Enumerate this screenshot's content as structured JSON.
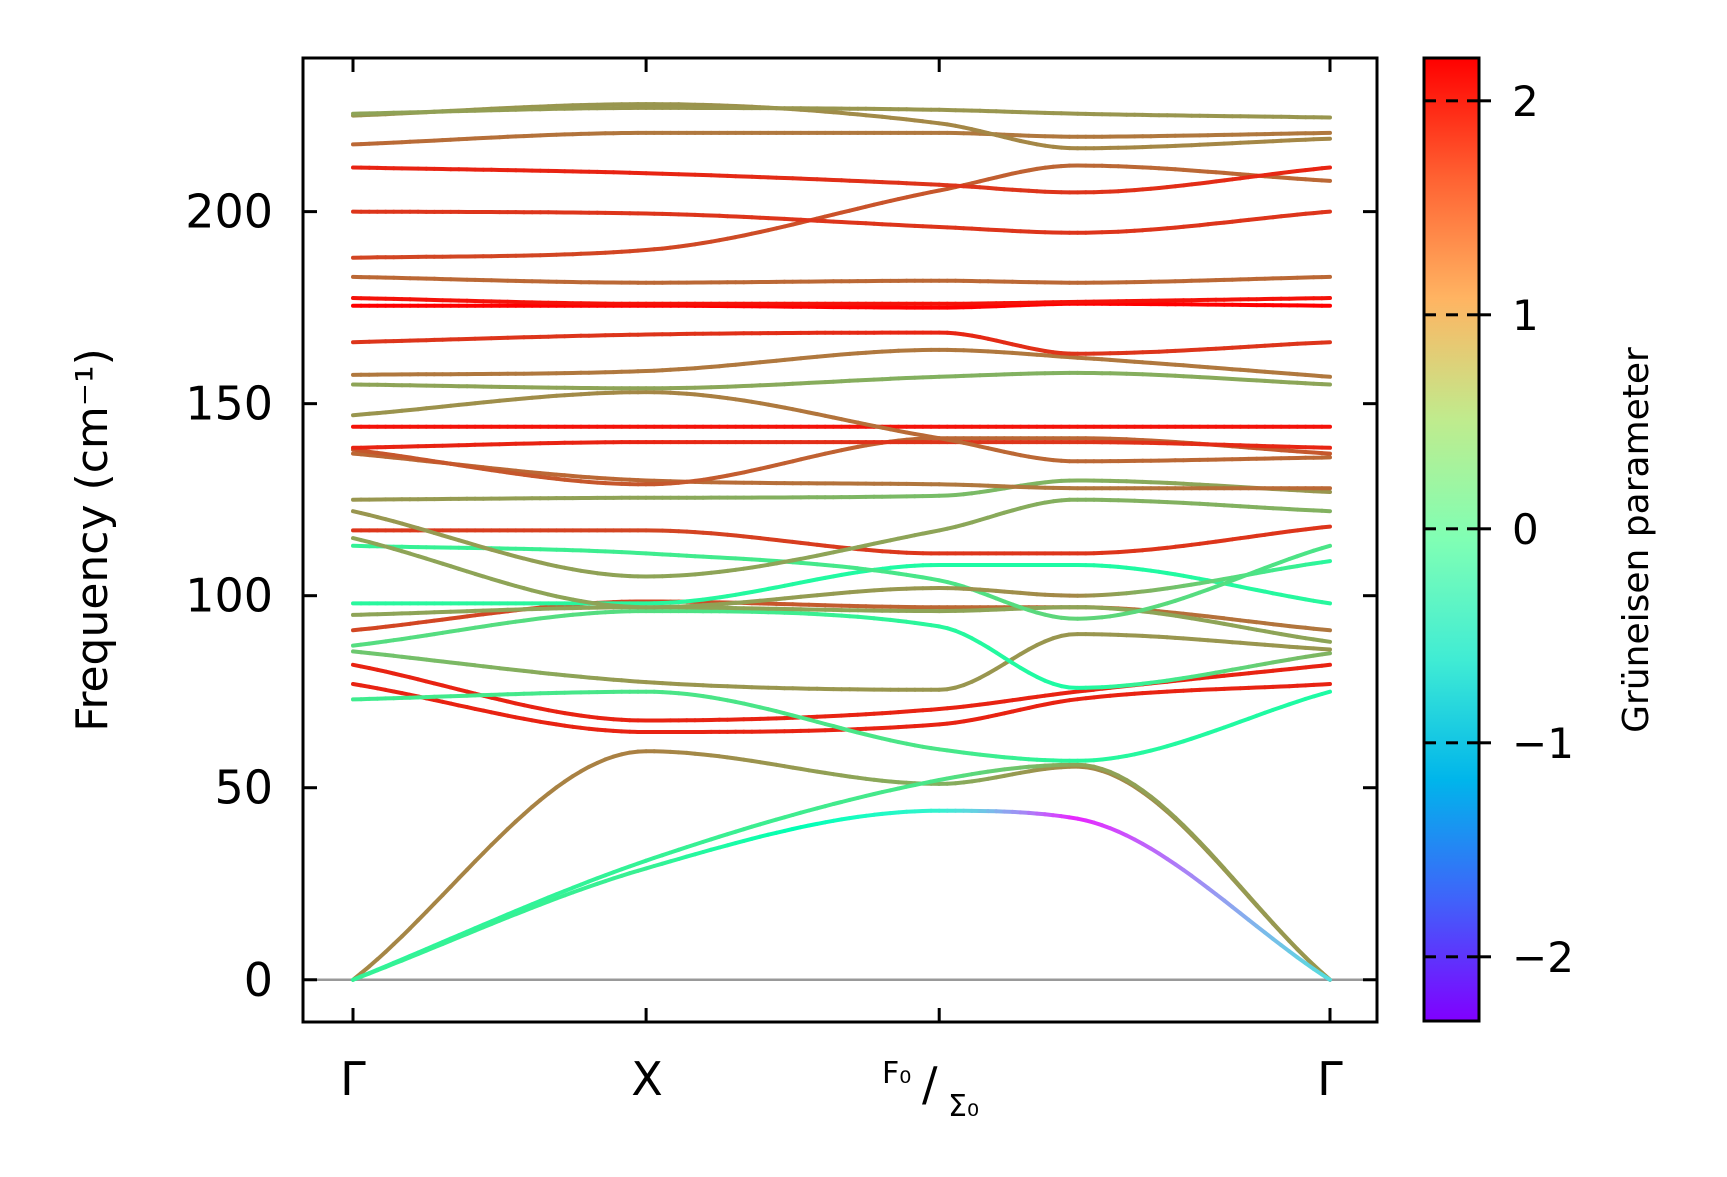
{
  "chart_data": {
    "type": "line",
    "title": "",
    "xlabel": "",
    "ylabel": "Frequency (cm⁻¹)",
    "ylim": [
      -11,
      240
    ],
    "xlim": [
      -0.12,
      2.62
    ],
    "ytick_labels": [
      "0",
      "50",
      "100",
      "150",
      "200"
    ],
    "yticks": [
      0,
      50,
      100,
      150,
      200
    ],
    "xticks": [
      {
        "label": "Γ",
        "pos": 0
      },
      {
        "label": "X",
        "pos": 0.75
      },
      {
        "label": "F₀/Σ₀",
        "pos": 1.5
      },
      {
        "label": "Γ",
        "pos": 2.5
      }
    ],
    "x_label_gamma": "Γ",
    "x_label_x": "X",
    "x_label_f0": "F₀",
    "x_label_s0": "Σ₀",
    "colorbar": {
      "label": "Grüneisen parameter",
      "min": -2.3,
      "max": 2.2,
      "ticks": [
        2,
        1,
        0,
        -1,
        -2
      ],
      "tick_labels": [
        "2",
        "1",
        "0",
        "−1",
        "−2"
      ],
      "colormap": "rainbow"
    },
    "zero_line": 0,
    "series": [
      {
        "x": [
          0,
          0.75,
          1.5,
          1.85,
          2.5
        ],
        "y": [
          0,
          59.5,
          51,
          55.5,
          0
        ],
        "g": [
          1.4,
          1.45,
          1.1,
          1.4,
          1.3
        ]
      },
      {
        "x": [
          0,
          0.75,
          1.5,
          1.85,
          2.5
        ],
        "y": [
          0,
          31,
          52,
          56,
          0
        ],
        "g": [
          0.3,
          0.4,
          0.6,
          1.2,
          1.3
        ]
      },
      {
        "x": [
          0,
          0.75,
          1.5,
          1.85,
          2.5
        ],
        "y": [
          0,
          29,
          44,
          42,
          0
        ],
        "g": [
          0.4,
          0.45,
          -0.5,
          -2.1,
          -0.8
        ]
      },
      {
        "x": [
          0,
          0.75,
          1.5,
          1.85,
          2.5
        ],
        "y": [
          82,
          67.5,
          70.5,
          75,
          82
        ],
        "g": [
          2.0,
          2.0,
          2.0,
          2.0,
          2.0
        ]
      },
      {
        "x": [
          0,
          0.75,
          1.5,
          1.85,
          2.5
        ],
        "y": [
          77,
          64.5,
          66.5,
          73,
          77
        ],
        "g": [
          2.0,
          2.0,
          2.0,
          2.0,
          2.0
        ]
      },
      {
        "x": [
          0,
          0.75,
          1.5,
          1.85,
          2.5
        ],
        "y": [
          73,
          75,
          60,
          57,
          75
        ],
        "g": [
          0.5,
          0.6,
          0.6,
          0.3,
          0.2
        ]
      },
      {
        "x": [
          0,
          0.75,
          1.5,
          1.85,
          2.5
        ],
        "y": [
          85.5,
          77.5,
          75.5,
          90,
          86
        ],
        "g": [
          0.9,
          1.3,
          1.3,
          1.3,
          1.3
        ]
      },
      {
        "x": [
          0,
          0.75,
          1.5,
          1.85,
          2.5
        ],
        "y": [
          87,
          96,
          92,
          76,
          85
        ],
        "g": [
          0.7,
          0.7,
          0.3,
          0.2,
          1.1
        ]
      },
      {
        "x": [
          0,
          0.75,
          1.5,
          1.85,
          2.5
        ],
        "y": [
          91,
          98.5,
          97,
          97,
          91
        ],
        "g": [
          1.8,
          1.8,
          1.6,
          1.6,
          1.5
        ]
      },
      {
        "x": [
          0,
          0.75,
          1.5,
          1.85,
          2.5
        ],
        "y": [
          95,
          97,
          96,
          97,
          88
        ],
        "g": [
          1.2,
          1.2,
          1.2,
          1.2,
          1.2
        ]
      },
      {
        "x": [
          0,
          0.75,
          1.5,
          1.85,
          2.5
        ],
        "y": [
          98,
          98,
          108,
          108,
          98
        ],
        "g": [
          0.3,
          0.3,
          0.2,
          0.2,
          0.3
        ]
      },
      {
        "x": [
          0,
          0.75,
          1.5,
          1.85,
          2.5
        ],
        "y": [
          113,
          111,
          104,
          94,
          113
        ],
        "g": [
          0.4,
          0.5,
          0.6,
          0.8,
          0.6
        ]
      },
      {
        "x": [
          0,
          0.75,
          1.5,
          1.85,
          2.5
        ],
        "y": [
          115,
          97,
          102,
          100,
          109
        ],
        "g": [
          1.2,
          1.2,
          1.3,
          1.4,
          0.3
        ]
      },
      {
        "x": [
          0,
          0.75,
          1.5,
          1.85,
          2.5
        ],
        "y": [
          117,
          117,
          111,
          111,
          118
        ],
        "g": [
          1.9,
          1.8,
          1.9,
          1.9,
          1.9
        ]
      },
      {
        "x": [
          0,
          0.75,
          1.5,
          1.85,
          2.5
        ],
        "y": [
          122,
          105,
          117,
          125,
          122
        ],
        "g": [
          1.3,
          1.2,
          1.2,
          1.1,
          1.1
        ]
      },
      {
        "x": [
          0,
          0.75,
          1.5,
          1.85,
          2.5
        ],
        "y": [
          125,
          125.5,
          126,
          130,
          127
        ],
        "g": [
          1.3,
          1.2,
          1.0,
          1.1,
          1.3
        ]
      },
      {
        "x": [
          0,
          0.75,
          1.5,
          1.85,
          2.5
        ],
        "y": [
          137,
          130,
          129,
          128,
          128
        ],
        "g": [
          1.6,
          1.6,
          1.5,
          1.5,
          1.6
        ]
      },
      {
        "x": [
          0,
          0.75,
          1.5,
          1.85,
          2.5
        ],
        "y": [
          138,
          129,
          141,
          141,
          137
        ],
        "g": [
          1.7,
          1.7,
          1.6,
          1.6,
          1.7
        ]
      },
      {
        "x": [
          0,
          0.75,
          1.5,
          1.85,
          2.5
        ],
        "y": [
          138.5,
          140,
          140,
          140,
          138.5
        ],
        "g": [
          2.0,
          2.0,
          1.9,
          1.9,
          2.0
        ]
      },
      {
        "x": [
          0,
          0.75,
          1.5,
          1.85,
          2.5
        ],
        "y": [
          144,
          144,
          144,
          144,
          144
        ],
        "g": [
          2.1,
          2.1,
          2.1,
          2.1,
          2.1
        ]
      },
      {
        "x": [
          0,
          0.75,
          1.5,
          1.85,
          2.5
        ],
        "y": [
          147,
          153,
          141,
          135,
          136
        ],
        "g": [
          1.3,
          1.4,
          1.6,
          1.6,
          1.6
        ]
      },
      {
        "x": [
          0,
          0.75,
          1.5,
          1.85,
          2.5
        ],
        "y": [
          155,
          154,
          157,
          158,
          155
        ],
        "g": [
          1.2,
          1.2,
          1.1,
          1.1,
          1.2
        ]
      },
      {
        "x": [
          0,
          0.75,
          1.5,
          1.85,
          2.5
        ],
        "y": [
          157.5,
          158.5,
          164,
          162,
          157
        ],
        "g": [
          1.5,
          1.5,
          1.5,
          1.5,
          1.5
        ]
      },
      {
        "x": [
          0,
          0.75,
          1.5,
          1.85,
          2.5
        ],
        "y": [
          166,
          168,
          168.5,
          163,
          166
        ],
        "g": [
          1.9,
          1.9,
          2.0,
          1.9,
          1.9
        ]
      },
      {
        "x": [
          0,
          0.75,
          1.5,
          1.85,
          2.5
        ],
        "y": [
          175.5,
          175.5,
          175,
          176,
          175.5
        ],
        "g": [
          2.2,
          2.2,
          2.2,
          2.2,
          2.2
        ]
      },
      {
        "x": [
          0,
          0.75,
          1.5,
          1.85,
          2.5
        ],
        "y": [
          177.5,
          176,
          176,
          176.5,
          177.5
        ],
        "g": [
          2.1,
          2.1,
          2.1,
          2.1,
          2.1
        ]
      },
      {
        "x": [
          0,
          0.75,
          1.5,
          1.85,
          2.5
        ],
        "y": [
          183,
          181.5,
          182,
          181.5,
          183
        ],
        "g": [
          1.6,
          1.6,
          1.6,
          1.6,
          1.6
        ]
      },
      {
        "x": [
          0,
          0.75,
          1.5,
          1.85,
          2.5
        ],
        "y": [
          188,
          190,
          205.5,
          212,
          208
        ],
        "g": [
          1.8,
          1.8,
          1.7,
          1.6,
          1.6
        ]
      },
      {
        "x": [
          0,
          0.75,
          1.5,
          1.85,
          2.5
        ],
        "y": [
          200,
          199.5,
          196,
          194.5,
          200
        ],
        "g": [
          1.9,
          1.9,
          1.9,
          1.9,
          1.9
        ]
      },
      {
        "x": [
          0,
          0.75,
          1.5,
          1.85,
          2.5
        ],
        "y": [
          211.5,
          210,
          207,
          205,
          211.5
        ],
        "g": [
          2.0,
          2.0,
          1.9,
          1.9,
          2.0
        ]
      },
      {
        "x": [
          0,
          0.75,
          1.5,
          1.85,
          2.5
        ],
        "y": [
          217.5,
          220.5,
          220.5,
          219.5,
          220.5
        ],
        "g": [
          1.6,
          1.5,
          1.5,
          1.5,
          1.5
        ]
      },
      {
        "x": [
          0,
          0.75,
          1.5,
          1.85,
          2.5
        ],
        "y": [
          225,
          228,
          223,
          216.5,
          219
        ],
        "g": [
          1.3,
          1.3,
          1.4,
          1.4,
          1.4
        ]
      },
      {
        "x": [
          0,
          0.75,
          1.5,
          1.85,
          2.5
        ],
        "y": [
          225.5,
          227,
          226.5,
          225.5,
          224.5
        ],
        "g": [
          1.2,
          1.3,
          1.3,
          1.3,
          1.3
        ]
      }
    ]
  }
}
